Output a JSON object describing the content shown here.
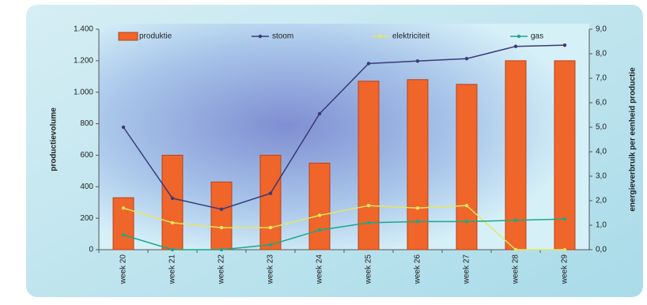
{
  "chart_data": {
    "type": "bar-line",
    "categories": [
      "week 20",
      "week 21",
      "week 22",
      "week 23",
      "week 24",
      "week 25",
      "week 26",
      "week 27",
      "week 28",
      "week 29"
    ],
    "ylabel": "productievolume",
    "y2label": "energieverbruik per eenheid productie",
    "ylim": [
      0,
      1400
    ],
    "yticks": [
      0,
      200,
      400,
      600,
      800,
      {
        "value": 1000,
        "label": "1.000"
      },
      {
        "value": 1200,
        "label": "1.200"
      },
      {
        "value": 1400,
        "label": "1.400"
      }
    ],
    "y2lim": [
      0,
      9
    ],
    "y2ticks": [
      {
        "value": 0,
        "label": "0,0"
      },
      {
        "value": 1,
        "label": "1,0"
      },
      {
        "value": 2,
        "label": "2,0"
      },
      {
        "value": 3,
        "label": "3,0"
      },
      {
        "value": 4,
        "label": "4,0"
      },
      {
        "value": 5,
        "label": "5,0"
      },
      {
        "value": 6,
        "label": "6,0"
      },
      {
        "value": 7,
        "label": "7,0"
      },
      {
        "value": 8,
        "label": "8,0"
      },
      {
        "value": 9,
        "label": "9,0"
      }
    ],
    "series": [
      {
        "name": "produktie",
        "color": "#f0652a",
        "kind": "bar",
        "values": [
          330,
          600,
          430,
          600,
          550,
          1070,
          1080,
          1050,
          1200,
          1200
        ]
      },
      {
        "name": "stoom",
        "color": "#3a3a78",
        "kind": "line",
        "axis": "y2",
        "values": [
          5.0,
          2.1,
          1.65,
          2.3,
          5.55,
          7.6,
          7.7,
          7.8,
          8.3,
          8.35
        ]
      },
      {
        "name": "elektriciteit",
        "color": "#e6e660",
        "kind": "line",
        "axis": "y2",
        "values": [
          1.7,
          1.1,
          0.9,
          0.9,
          1.4,
          1.8,
          1.7,
          1.8,
          0.0,
          0.0
        ]
      },
      {
        "name": "gas",
        "color": "#1aa888",
        "kind": "line",
        "axis": "y2",
        "values": [
          0.6,
          0.0,
          0.0,
          0.2,
          0.8,
          1.1,
          1.15,
          1.15,
          1.2,
          1.25
        ]
      }
    ]
  }
}
